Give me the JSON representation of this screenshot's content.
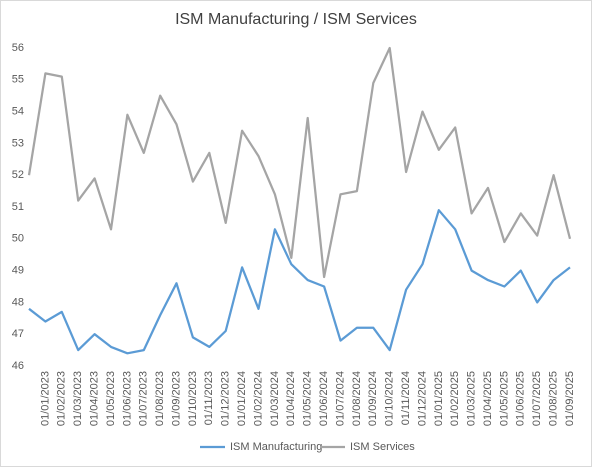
{
  "chart_data": {
    "type": "line",
    "title": "ISM Manufacturing / ISM Services",
    "categories": [
      null,
      "01/01/2023",
      "01/02/2023",
      "01/03/2023",
      "01/04/2023",
      "01/05/2023",
      "01/06/2023",
      "01/07/2023",
      "01/08/2023",
      "01/09/2023",
      "01/10/2023",
      "01/11/2023",
      "01/12/2023",
      "01/01/2024",
      "01/02/2024",
      "01/03/2024",
      "01/04/2024",
      "01/05/2024",
      "01/06/2024",
      "01/07/2024",
      "01/08/2024",
      "01/09/2024",
      "01/10/2024",
      "01/11/2024",
      "01/12/2024",
      "01/01/2025",
      "01/02/2025",
      "01/03/2025",
      "01/04/2025",
      "01/05/2025",
      "01/06/2025",
      "01/07/2025",
      "01/08/2025",
      "01/09/2025"
    ],
    "series": [
      {
        "name": "ISM Manufacturing",
        "color": "#5b9bd5",
        "values": [
          47.8,
          47.4,
          47.7,
          46.5,
          47.0,
          46.6,
          46.4,
          46.5,
          47.6,
          48.6,
          46.9,
          46.6,
          47.1,
          49.1,
          47.8,
          50.3,
          49.2,
          48.7,
          48.5,
          46.8,
          47.2,
          47.2,
          46.5,
          48.4,
          49.2,
          50.9,
          50.3,
          49.0,
          48.7,
          48.5,
          49.0,
          48.0,
          48.7,
          49.1
        ]
      },
      {
        "name": "ISM Services",
        "color": "#a5a5a5",
        "values": [
          52.0,
          55.2,
          55.1,
          51.2,
          51.9,
          50.3,
          53.9,
          52.7,
          54.5,
          53.6,
          51.8,
          52.7,
          50.5,
          53.4,
          52.6,
          51.4,
          49.4,
          53.8,
          48.8,
          51.4,
          51.5,
          54.9,
          56.0,
          52.1,
          54.0,
          52.8,
          53.5,
          50.8,
          51.6,
          49.9,
          50.8,
          50.1,
          52.0,
          50.0
        ]
      }
    ],
    "ylim": [
      46,
      56
    ],
    "yticks": [
      46,
      47,
      48,
      49,
      50,
      51,
      52,
      53,
      54,
      55,
      56
    ],
    "grid": false,
    "legend": "bottom"
  }
}
